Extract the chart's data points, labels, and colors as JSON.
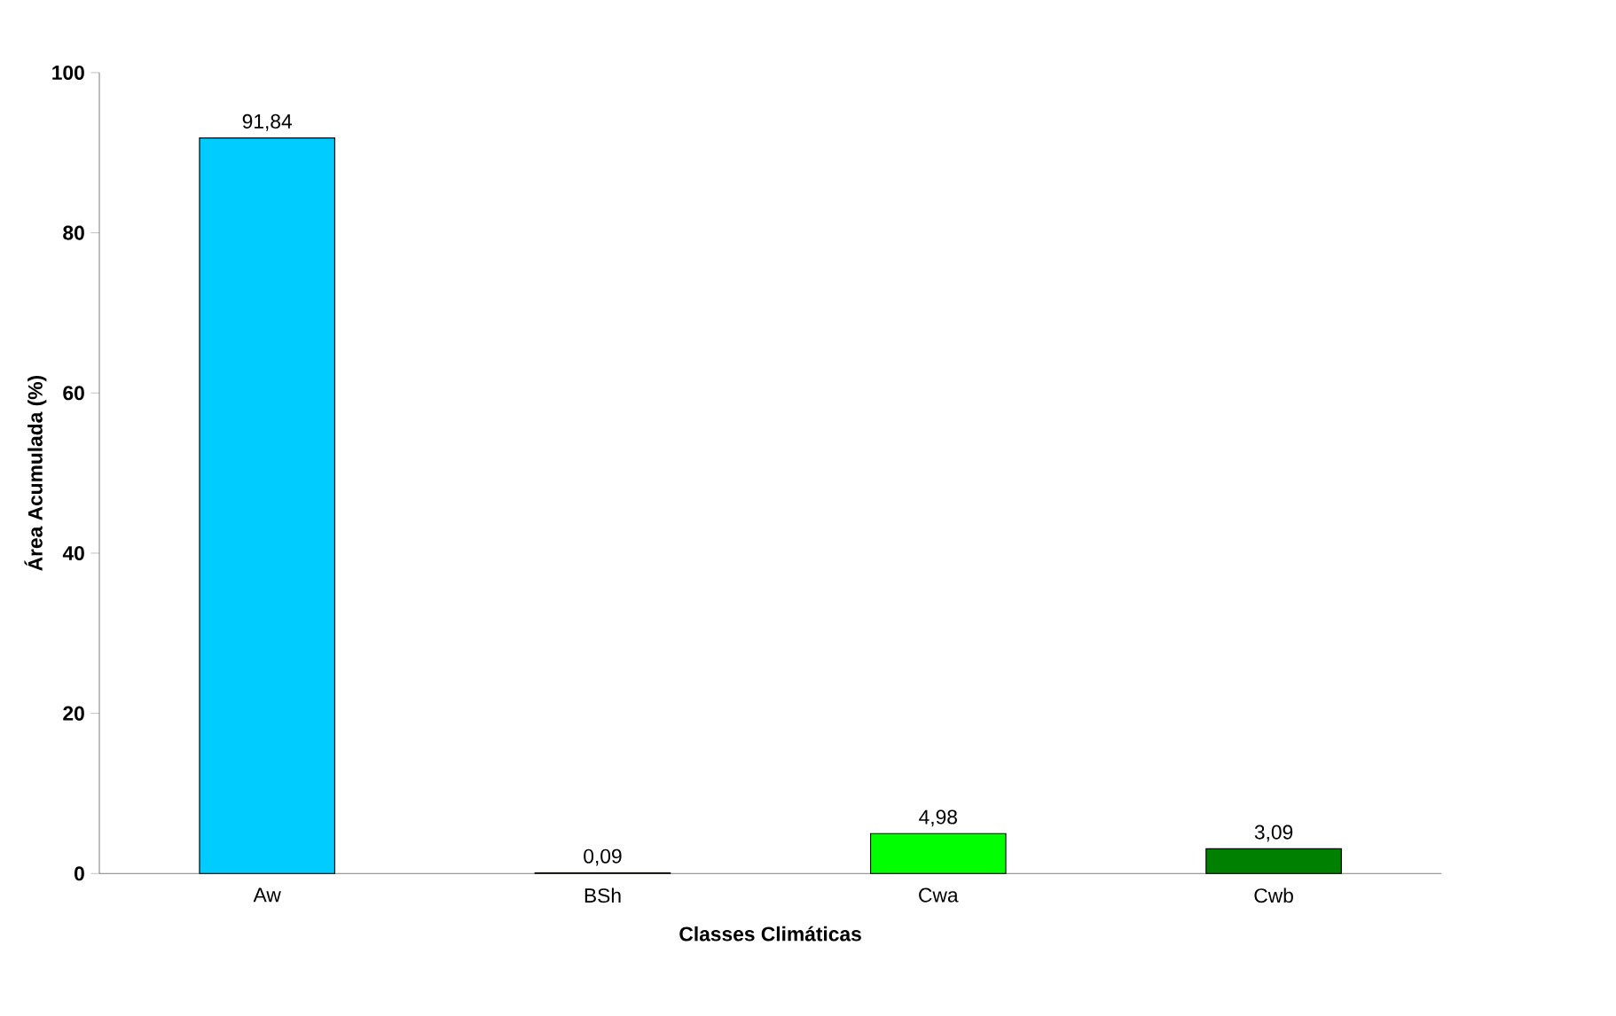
{
  "chart_data": {
    "type": "bar",
    "xlabel": "Classes Climáticas",
    "ylabel": "Área Acumulada (%)",
    "categories": [
      "Aw",
      "BSh",
      "Cwa",
      "Cwb"
    ],
    "values": [
      91.84,
      0.09,
      4.98,
      3.09
    ],
    "value_labels": [
      "91,84",
      "0,09",
      "4,98",
      "3,09"
    ],
    "colors": [
      "#00ccff",
      "#ffff00",
      "#00ff00",
      "#008000"
    ],
    "ylim": [
      0,
      100
    ],
    "yticks": [
      0,
      20,
      40,
      60,
      80,
      100
    ]
  }
}
